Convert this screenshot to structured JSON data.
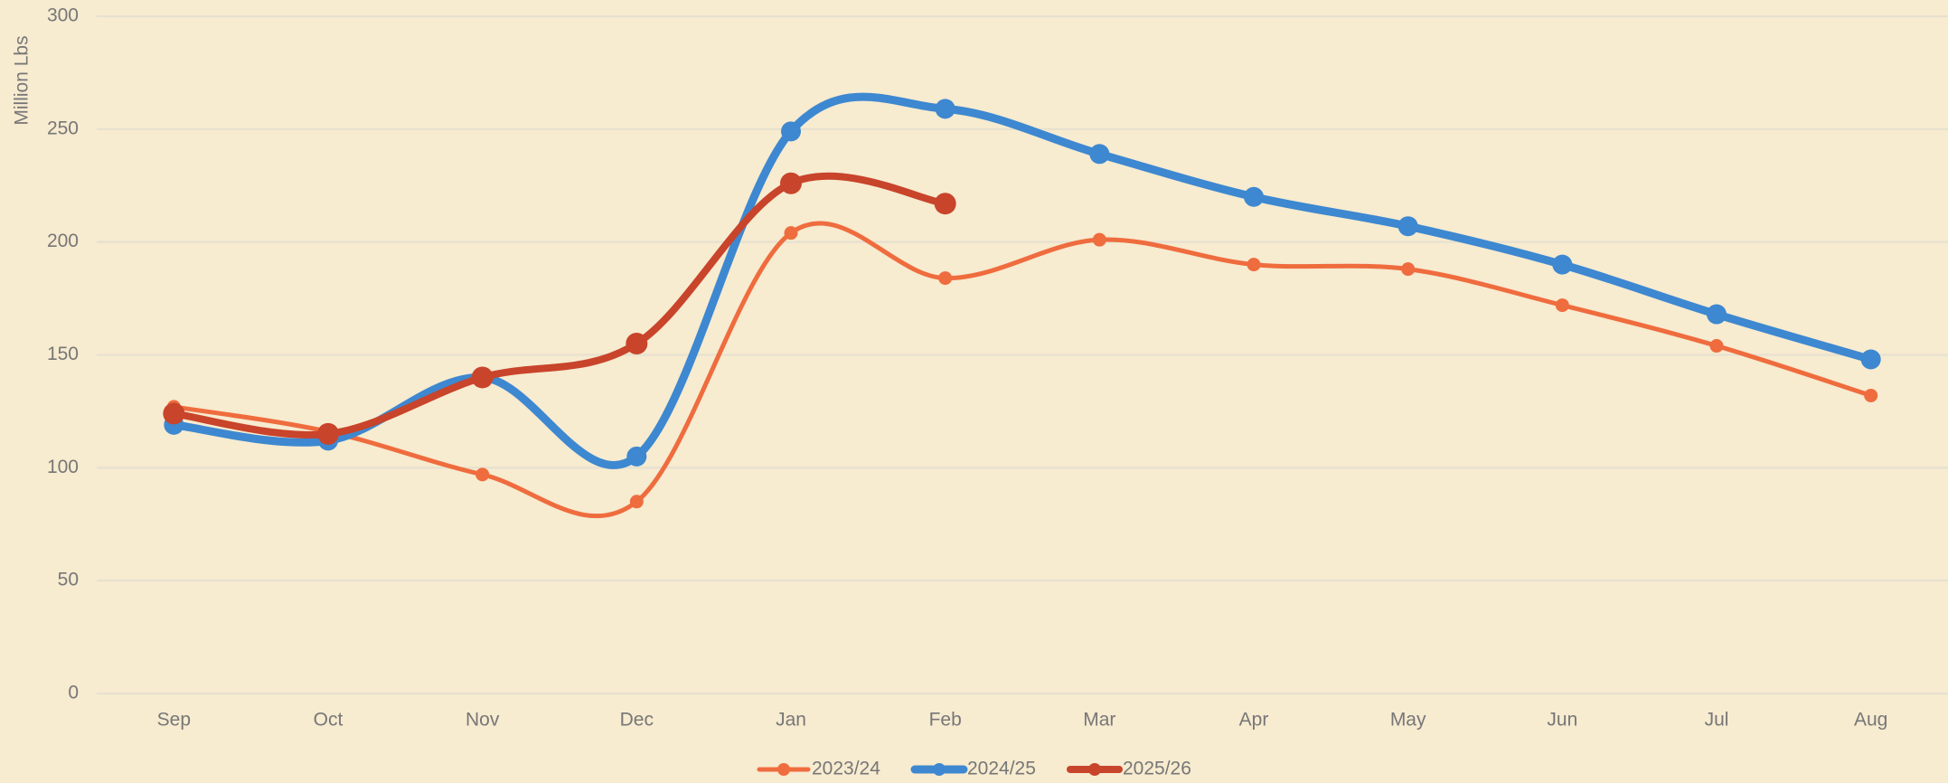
{
  "chart_data": {
    "type": "line",
    "y_label": "Million Lbs",
    "categories": [
      "Sep",
      "Oct",
      "Nov",
      "Dec",
      "Jan",
      "Feb",
      "Mar",
      "Apr",
      "May",
      "Jun",
      "Jul",
      "Aug"
    ],
    "series": [
      {
        "name": "2023/24",
        "color": "#ef6c3e",
        "values": [
          127,
          116,
          97,
          85,
          204,
          184,
          201,
          190,
          188,
          172,
          154,
          132
        ]
      },
      {
        "name": "2024/25",
        "color": "#3d88d0",
        "values": [
          119,
          112,
          140,
          105,
          249,
          259,
          239,
          220,
          207,
          190,
          168,
          148
        ]
      },
      {
        "name": "2025/26",
        "color": "#c8442a",
        "values": [
          124,
          115,
          140,
          155,
          226,
          217,
          null,
          null,
          null,
          null,
          null,
          null
        ]
      }
    ],
    "ylim": [
      0,
      300
    ],
    "yticks": [
      0,
      50,
      100,
      150,
      200,
      250,
      300
    ],
    "grid": true,
    "legend": "bottom"
  }
}
